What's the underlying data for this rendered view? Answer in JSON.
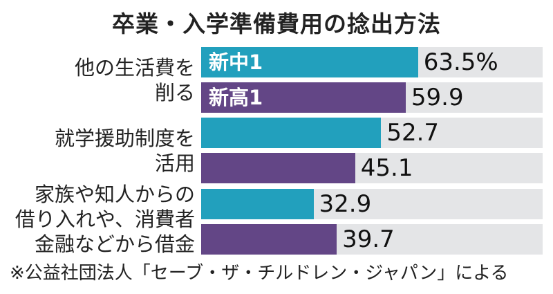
{
  "chart_data": {
    "type": "bar",
    "orientation": "horizontal",
    "title": "卒業・入学準備費用の捻出方法",
    "categories": [
      "他の生活費を\n削る",
      "就学援助制度を\n活用",
      "家族や知人からの\n借り入れや、消費者\n金融などから借金"
    ],
    "series": [
      {
        "name": "新中1",
        "color": "#22a0bd",
        "values": [
          63.5,
          52.7,
          32.9
        ],
        "labels": [
          "63.5%",
          "52.7",
          "32.9"
        ]
      },
      {
        "name": "新高1",
        "color": "#634686",
        "values": [
          59.9,
          45.1,
          39.7
        ],
        "labels": [
          "59.9",
          "45.1",
          "39.7"
        ]
      }
    ],
    "xlim": [
      0,
      100
    ],
    "background_color": "#e4e5e7",
    "note": "※公益社団法人「セーブ・ザ・チルドレン・ジャパン」による"
  }
}
